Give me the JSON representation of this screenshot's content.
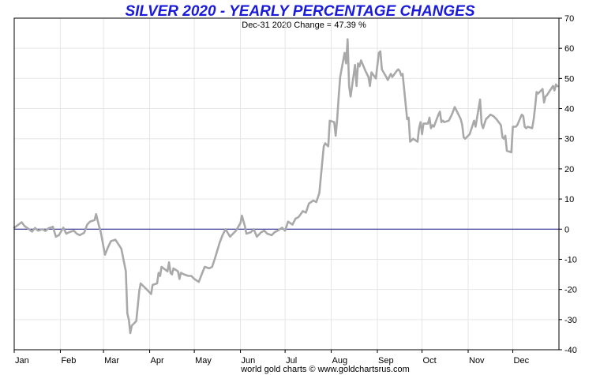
{
  "chart_data": {
    "type": "line",
    "title": "SILVER 2020 - YEARLY PERCENTAGE CHANGES",
    "subtitle": "Dec-31  2020   Change = 47.39 %",
    "footer": "world gold charts © www.goldchartsrus.com",
    "xlabel": "",
    "ylabel": "",
    "ylim": [
      -40,
      70
    ],
    "yticks": [
      70,
      60,
      50,
      40,
      30,
      20,
      10,
      0,
      -10,
      -20,
      -30,
      -40
    ],
    "x_month_labels": [
      "Jan",
      "Feb",
      "Mar",
      "Apr",
      "May",
      "Jun",
      "Jul",
      "Aug",
      "Sep",
      "Oct",
      "Nov",
      "Dec"
    ],
    "grid": true,
    "legend": "none",
    "colors": {
      "title": "#1a1adb",
      "line": "#a9a9a9",
      "zero_line": "#1a1a8a",
      "grid": "#e6e6e6"
    },
    "series": [
      {
        "values": [
          {
            "x": "2020-01-01",
            "y": 0.5
          },
          {
            "x": "2020-01-03",
            "y": 1.2
          },
          {
            "x": "2020-01-06",
            "y": 2.3
          },
          {
            "x": "2020-01-08",
            "y": 1.0
          },
          {
            "x": "2020-01-10",
            "y": 0.3
          },
          {
            "x": "2020-01-13",
            "y": -0.8
          },
          {
            "x": "2020-01-15",
            "y": 0.4
          },
          {
            "x": "2020-01-17",
            "y": -0.5
          },
          {
            "x": "2020-01-20",
            "y": 0.0
          },
          {
            "x": "2020-01-22",
            "y": -0.6
          },
          {
            "x": "2020-01-24",
            "y": 0.3
          },
          {
            "x": "2020-01-27",
            "y": 0.8
          },
          {
            "x": "2020-01-29",
            "y": -2.5
          },
          {
            "x": "2020-01-31",
            "y": -2.0
          },
          {
            "x": "2020-02-03",
            "y": 0.5
          },
          {
            "x": "2020-02-05",
            "y": -1.5
          },
          {
            "x": "2020-02-07",
            "y": -1.0
          },
          {
            "x": "2020-02-10",
            "y": -0.5
          },
          {
            "x": "2020-02-12",
            "y": -1.5
          },
          {
            "x": "2020-02-14",
            "y": -2.0
          },
          {
            "x": "2020-02-17",
            "y": -1.2
          },
          {
            "x": "2020-02-19",
            "y": 1.5
          },
          {
            "x": "2020-02-21",
            "y": 2.5
          },
          {
            "x": "2020-02-24",
            "y": 3.0
          },
          {
            "x": "2020-02-25",
            "y": 5.0
          },
          {
            "x": "2020-02-27",
            "y": 1.0
          },
          {
            "x": "2020-02-28",
            "y": -0.5
          },
          {
            "x": "2020-03-02",
            "y": -8.5
          },
          {
            "x": "2020-03-04",
            "y": -6.0
          },
          {
            "x": "2020-03-06",
            "y": -4.0
          },
          {
            "x": "2020-03-09",
            "y": -3.5
          },
          {
            "x": "2020-03-11",
            "y": -5.0
          },
          {
            "x": "2020-03-13",
            "y": -6.5
          },
          {
            "x": "2020-03-16",
            "y": -14.0
          },
          {
            "x": "2020-03-17",
            "y": -28.0
          },
          {
            "x": "2020-03-18",
            "y": -30.0
          },
          {
            "x": "2020-03-19",
            "y": -34.5
          },
          {
            "x": "2020-03-20",
            "y": -32.0
          },
          {
            "x": "2020-03-23",
            "y": -30.5
          },
          {
            "x": "2020-03-25",
            "y": -20.5
          },
          {
            "x": "2020-03-26",
            "y": -18.0
          },
          {
            "x": "2020-03-27",
            "y": -18.5
          },
          {
            "x": "2020-03-30",
            "y": -20.0
          },
          {
            "x": "2020-04-01",
            "y": -21.0
          },
          {
            "x": "2020-04-02",
            "y": -21.5
          },
          {
            "x": "2020-04-03",
            "y": -18.5
          },
          {
            "x": "2020-04-06",
            "y": -18.0
          },
          {
            "x": "2020-04-07",
            "y": -14.5
          },
          {
            "x": "2020-04-08",
            "y": -15.5
          },
          {
            "x": "2020-04-09",
            "y": -12.5
          },
          {
            "x": "2020-04-13",
            "y": -14.0
          },
          {
            "x": "2020-04-14",
            "y": -11.0
          },
          {
            "x": "2020-04-15",
            "y": -14.5
          },
          {
            "x": "2020-04-16",
            "y": -15.0
          },
          {
            "x": "2020-04-17",
            "y": -13.0
          },
          {
            "x": "2020-04-20",
            "y": -14.0
          },
          {
            "x": "2020-04-21",
            "y": -16.5
          },
          {
            "x": "2020-04-22",
            "y": -14.5
          },
          {
            "x": "2020-04-24",
            "y": -15.0
          },
          {
            "x": "2020-04-27",
            "y": -15.5
          },
          {
            "x": "2020-04-29",
            "y": -15.5
          },
          {
            "x": "2020-05-01",
            "y": -16.5
          },
          {
            "x": "2020-05-04",
            "y": -17.5
          },
          {
            "x": "2020-05-06",
            "y": -15.0
          },
          {
            "x": "2020-05-08",
            "y": -12.5
          },
          {
            "x": "2020-05-11",
            "y": -13.0
          },
          {
            "x": "2020-05-13",
            "y": -12.5
          },
          {
            "x": "2020-05-15",
            "y": -9.5
          },
          {
            "x": "2020-05-18",
            "y": -4.5
          },
          {
            "x": "2020-05-20",
            "y": -2.0
          },
          {
            "x": "2020-05-22",
            "y": 0.0
          },
          {
            "x": "2020-05-25",
            "y": -2.5
          },
          {
            "x": "2020-05-27",
            "y": -1.5
          },
          {
            "x": "2020-05-29",
            "y": -0.5
          },
          {
            "x": "2020-06-01",
            "y": 2.0
          },
          {
            "x": "2020-06-02",
            "y": 4.5
          },
          {
            "x": "2020-06-04",
            "y": 1.0
          },
          {
            "x": "2020-06-05",
            "y": -1.5
          },
          {
            "x": "2020-06-08",
            "y": -1.0
          },
          {
            "x": "2020-06-10",
            "y": 0.0
          },
          {
            "x": "2020-06-12",
            "y": -2.5
          },
          {
            "x": "2020-06-15",
            "y": -1.0
          },
          {
            "x": "2020-06-17",
            "y": -0.5
          },
          {
            "x": "2020-06-19",
            "y": -1.5
          },
          {
            "x": "2020-06-22",
            "y": -2.0
          },
          {
            "x": "2020-06-24",
            "y": -1.0
          },
          {
            "x": "2020-06-26",
            "y": -0.5
          },
          {
            "x": "2020-06-29",
            "y": 0.5
          },
          {
            "x": "2020-07-01",
            "y": -0.5
          },
          {
            "x": "2020-07-03",
            "y": 2.5
          },
          {
            "x": "2020-07-06",
            "y": 1.5
          },
          {
            "x": "2020-07-08",
            "y": 3.5
          },
          {
            "x": "2020-07-10",
            "y": 4.0
          },
          {
            "x": "2020-07-13",
            "y": 6.0
          },
          {
            "x": "2020-07-15",
            "y": 5.5
          },
          {
            "x": "2020-07-17",
            "y": 8.5
          },
          {
            "x": "2020-07-20",
            "y": 9.5
          },
          {
            "x": "2020-07-22",
            "y": 9.0
          },
          {
            "x": "2020-07-24",
            "y": 12.0
          },
          {
            "x": "2020-07-27",
            "y": 27.5
          },
          {
            "x": "2020-07-28",
            "y": 28.5
          },
          {
            "x": "2020-07-30",
            "y": 27.5
          },
          {
            "x": "2020-07-31",
            "y": 36.0
          },
          {
            "x": "2020-08-03",
            "y": 35.5
          },
          {
            "x": "2020-08-04",
            "y": 31.0
          },
          {
            "x": "2020-08-05",
            "y": 36.5
          },
          {
            "x": "2020-08-06",
            "y": 44.0
          },
          {
            "x": "2020-08-07",
            "y": 50.5
          },
          {
            "x": "2020-08-10",
            "y": 58.5
          },
          {
            "x": "2020-08-11",
            "y": 55.0
          },
          {
            "x": "2020-08-12",
            "y": 63.0
          },
          {
            "x": "2020-08-13",
            "y": 47.5
          },
          {
            "x": "2020-08-14",
            "y": 44.0
          },
          {
            "x": "2020-08-17",
            "y": 54.5
          },
          {
            "x": "2020-08-18",
            "y": 47.5
          },
          {
            "x": "2020-08-19",
            "y": 55.0
          },
          {
            "x": "2020-08-20",
            "y": 54.0
          },
          {
            "x": "2020-08-21",
            "y": 56.0
          },
          {
            "x": "2020-08-24",
            "y": 52.5
          },
          {
            "x": "2020-08-26",
            "y": 50.5
          },
          {
            "x": "2020-08-27",
            "y": 47.5
          },
          {
            "x": "2020-08-28",
            "y": 52.0
          },
          {
            "x": "2020-08-31",
            "y": 50.0
          },
          {
            "x": "2020-09-02",
            "y": 58.5
          },
          {
            "x": "2020-09-03",
            "y": 59.0
          },
          {
            "x": "2020-09-04",
            "y": 53.0
          },
          {
            "x": "2020-09-07",
            "y": 50.5
          },
          {
            "x": "2020-09-08",
            "y": 49.5
          },
          {
            "x": "2020-09-10",
            "y": 51.5
          },
          {
            "x": "2020-09-11",
            "y": 50.5
          },
          {
            "x": "2020-09-14",
            "y": 52.5
          },
          {
            "x": "2020-09-15",
            "y": 53.0
          },
          {
            "x": "2020-09-16",
            "y": 52.5
          },
          {
            "x": "2020-09-17",
            "y": 51.0
          },
          {
            "x": "2020-09-18",
            "y": 51.5
          },
          {
            "x": "2020-09-21",
            "y": 36.5
          },
          {
            "x": "2020-09-22",
            "y": 37.0
          },
          {
            "x": "2020-09-23",
            "y": 29.0
          },
          {
            "x": "2020-09-24",
            "y": 29.5
          },
          {
            "x": "2020-09-25",
            "y": 30.0
          },
          {
            "x": "2020-09-28",
            "y": 29.0
          },
          {
            "x": "2020-09-29",
            "y": 33.5
          },
          {
            "x": "2020-09-30",
            "y": 35.5
          },
          {
            "x": "2020-10-01",
            "y": 31.5
          },
          {
            "x": "2020-10-02",
            "y": 35.0
          },
          {
            "x": "2020-10-05",
            "y": 35.0
          },
          {
            "x": "2020-10-06",
            "y": 37.0
          },
          {
            "x": "2020-10-07",
            "y": 33.5
          },
          {
            "x": "2020-10-08",
            "y": 34.5
          },
          {
            "x": "2020-10-09",
            "y": 34.0
          },
          {
            "x": "2020-10-12",
            "y": 38.0
          },
          {
            "x": "2020-10-13",
            "y": 39.0
          },
          {
            "x": "2020-10-14",
            "y": 35.5
          },
          {
            "x": "2020-10-15",
            "y": 36.0
          },
          {
            "x": "2020-10-16",
            "y": 35.5
          },
          {
            "x": "2020-10-19",
            "y": 36.0
          },
          {
            "x": "2020-10-21",
            "y": 38.0
          },
          {
            "x": "2020-10-23",
            "y": 40.5
          },
          {
            "x": "2020-10-26",
            "y": 37.5
          },
          {
            "x": "2020-10-27",
            "y": 36.5
          },
          {
            "x": "2020-10-28",
            "y": 34.5
          },
          {
            "x": "2020-10-29",
            "y": 30.5
          },
          {
            "x": "2020-10-30",
            "y": 30.0
          },
          {
            "x": "2020-11-02",
            "y": 31.5
          },
          {
            "x": "2020-11-04",
            "y": 34.5
          },
          {
            "x": "2020-11-05",
            "y": 36.0
          },
          {
            "x": "2020-11-06",
            "y": 34.0
          },
          {
            "x": "2020-11-09",
            "y": 43.0
          },
          {
            "x": "2020-11-10",
            "y": 35.0
          },
          {
            "x": "2020-11-11",
            "y": 33.5
          },
          {
            "x": "2020-11-12",
            "y": 35.0
          },
          {
            "x": "2020-11-13",
            "y": 36.5
          },
          {
            "x": "2020-11-16",
            "y": 38.0
          },
          {
            "x": "2020-11-18",
            "y": 37.5
          },
          {
            "x": "2020-11-20",
            "y": 36.5
          },
          {
            "x": "2020-11-23",
            "y": 34.5
          },
          {
            "x": "2020-11-24",
            "y": 30.5
          },
          {
            "x": "2020-11-25",
            "y": 30.0
          },
          {
            "x": "2020-11-26",
            "y": 31.0
          },
          {
            "x": "2020-11-27",
            "y": 26.0
          },
          {
            "x": "2020-11-30",
            "y": 25.5
          },
          {
            "x": "2020-12-01",
            "y": 34.0
          },
          {
            "x": "2020-12-03",
            "y": 34.0
          },
          {
            "x": "2020-12-04",
            "y": 34.5
          },
          {
            "x": "2020-12-07",
            "y": 38.0
          },
          {
            "x": "2020-12-08",
            "y": 37.5
          },
          {
            "x": "2020-12-09",
            "y": 34.0
          },
          {
            "x": "2020-12-10",
            "y": 33.5
          },
          {
            "x": "2020-12-11",
            "y": 34.0
          },
          {
            "x": "2020-12-14",
            "y": 33.5
          },
          {
            "x": "2020-12-15",
            "y": 36.5
          },
          {
            "x": "2020-12-16",
            "y": 40.5
          },
          {
            "x": "2020-12-17",
            "y": 45.5
          },
          {
            "x": "2020-12-18",
            "y": 45.0
          },
          {
            "x": "2020-12-21",
            "y": 46.5
          },
          {
            "x": "2020-12-22",
            "y": 42.0
          },
          {
            "x": "2020-12-23",
            "y": 44.0
          },
          {
            "x": "2020-12-24",
            "y": 44.5
          },
          {
            "x": "2020-12-28",
            "y": 47.5
          },
          {
            "x": "2020-12-29",
            "y": 46.0
          },
          {
            "x": "2020-12-30",
            "y": 48.0
          },
          {
            "x": "2020-12-31",
            "y": 47.39
          }
        ]
      }
    ]
  }
}
